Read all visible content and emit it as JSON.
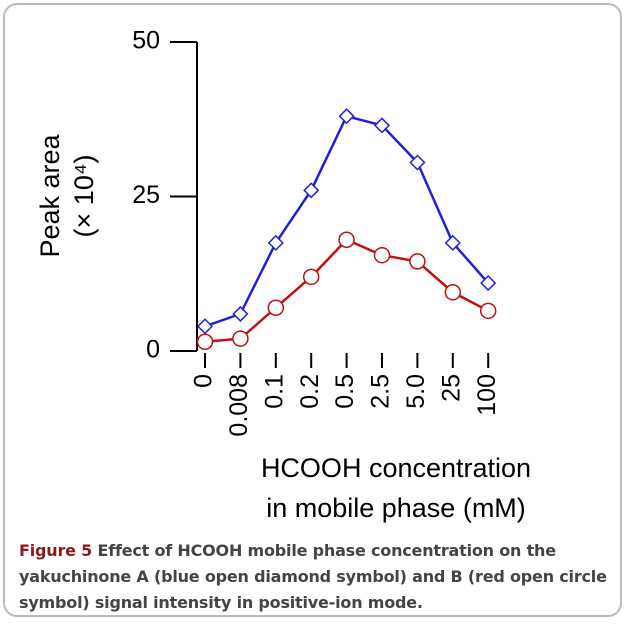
{
  "chart_data": {
    "type": "line",
    "ylabel": [
      "Peak area",
      "(× 10⁴)"
    ],
    "xlabel": [
      "HCOOH concentration",
      "in mobile phase (mM)"
    ],
    "categories": [
      "0",
      "0.008",
      "0.1",
      "0.2",
      "0.5",
      "2.5",
      "5.0",
      "25",
      "100"
    ],
    "series": [
      {
        "color": "#1f1fe0",
        "marker": "diamond",
        "values": [
          4,
          6,
          17.5,
          26,
          38,
          36.5,
          30.5,
          17.5,
          11
        ]
      },
      {
        "color": "#c01010",
        "marker": "circle",
        "values": [
          1.5,
          2,
          7,
          12,
          18,
          15.5,
          14.5,
          9.5,
          6.5
        ]
      }
    ],
    "ylim": [
      0,
      50
    ],
    "yticks": [
      0,
      25,
      50
    ],
    "caption": {
      "label": "Figure 5",
      "text": "Effect of HCOOH mobile phase concentration on the yakuchinone A (blue open diamond symbol) and B (red open circle symbol) signal intensity in positive-ion mode."
    }
  }
}
